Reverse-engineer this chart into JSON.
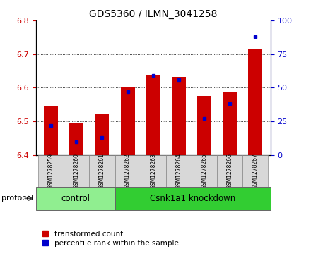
{
  "title": "GDS5360 / ILMN_3041258",
  "samples": [
    "GSM1278259",
    "GSM1278260",
    "GSM1278261",
    "GSM1278262",
    "GSM1278263",
    "GSM1278264",
    "GSM1278265",
    "GSM1278266",
    "GSM1278267"
  ],
  "red_values": [
    6.545,
    6.495,
    6.52,
    6.6,
    6.637,
    6.633,
    6.575,
    6.585,
    6.715
  ],
  "blue_percentiles": [
    22,
    10,
    13,
    47,
    59,
    56,
    27,
    38,
    88
  ],
  "ylim": [
    6.4,
    6.8
  ],
  "y2lim": [
    0,
    100
  ],
  "yticks": [
    6.4,
    6.5,
    6.6,
    6.7,
    6.8
  ],
  "y2ticks": [
    0,
    25,
    50,
    75,
    100
  ],
  "bar_bottom": 6.4,
  "control_samples": 3,
  "control_label": "control",
  "knockdown_label": "Csnk1a1 knockdown",
  "protocol_label": "protocol",
  "legend1": "transformed count",
  "legend2": "percentile rank within the sample",
  "red_color": "#cc0000",
  "blue_color": "#0000cc",
  "bar_width": 0.55,
  "control_box_color": "#90ee90",
  "knockdown_box_color": "#32cd32"
}
